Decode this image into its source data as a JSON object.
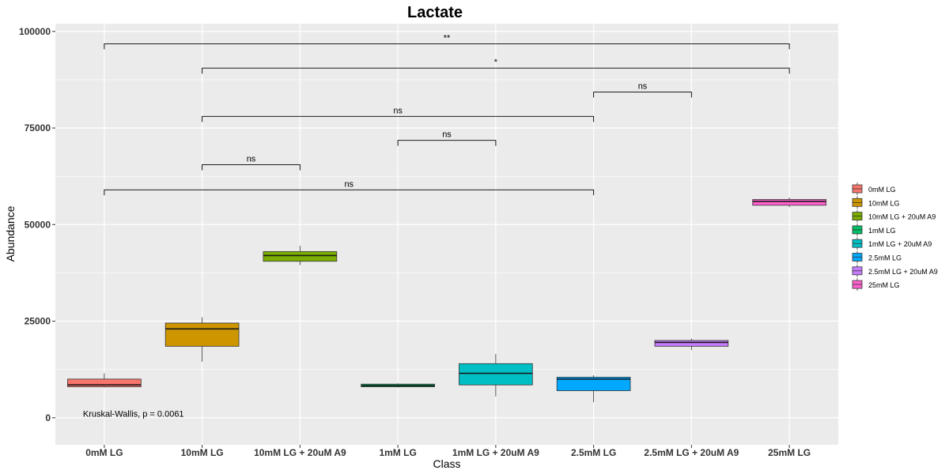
{
  "chart_data": {
    "type": "box",
    "title": "Lactate",
    "xlabel": "Class",
    "ylabel": "Abundance",
    "ylim": [
      -7000,
      102000
    ],
    "yticks": [
      0,
      25000,
      50000,
      75000,
      100000
    ],
    "ytick_labels": [
      "0",
      "25000",
      "50000",
      "75000",
      "100000"
    ],
    "categories": [
      "0mM LG",
      "10mM LG",
      "10mM LG + 20uM A9",
      "1mM LG",
      "1mM LG + 20uM A9",
      "2.5mM LG",
      "2.5mM LG + 20uM A9",
      "25mM LG"
    ],
    "boxes": [
      {
        "name": "0mM LG",
        "color": "#F8766D",
        "min": 7800,
        "q1": 8000,
        "median": 8500,
        "q3": 10000,
        "max": 11500
      },
      {
        "name": "10mM LG",
        "color": "#CD9600",
        "min": 14500,
        "q1": 18500,
        "median": 23000,
        "q3": 24500,
        "max": 26000
      },
      {
        "name": "10mM LG + 20uM A9",
        "color": "#7CAE00",
        "min": 39500,
        "q1": 40500,
        "median": 42000,
        "q3": 43000,
        "max": 44500
      },
      {
        "name": "1mM LG",
        "color": "#00BE67",
        "min": 7800,
        "q1": 8000,
        "median": 8300,
        "q3": 8700,
        "max": 8900
      },
      {
        "name": "1mM LG + 20uM A9",
        "color": "#00BFC4",
        "min": 5500,
        "q1": 8500,
        "median": 11500,
        "q3": 14000,
        "max": 16500
      },
      {
        "name": "2.5mM LG",
        "color": "#00A9FF",
        "min": 4000,
        "q1": 7000,
        "median": 10000,
        "q3": 10500,
        "max": 11000
      },
      {
        "name": "2.5mM LG + 20uM A9",
        "color": "#C77CFF",
        "min": 17500,
        "q1": 18500,
        "median": 19500,
        "q3": 20000,
        "max": 20500
      },
      {
        "name": "25mM LG",
        "color": "#FF61CC",
        "min": 54500,
        "q1": 55000,
        "median": 56000,
        "q3": 56500,
        "max": 57000
      }
    ],
    "comparisons": [
      {
        "from": 0,
        "to": 5,
        "y": 59000,
        "label": "ns"
      },
      {
        "from": 1,
        "to": 2,
        "y": 65500,
        "label": "ns"
      },
      {
        "from": 3,
        "to": 4,
        "y": 71800,
        "label": "ns"
      },
      {
        "from": 1,
        "to": 5,
        "y": 78000,
        "label": "ns"
      },
      {
        "from": 5,
        "to": 6,
        "y": 84300,
        "label": "ns"
      },
      {
        "from": 1,
        "to": 7,
        "y": 90500,
        "label": "*"
      },
      {
        "from": 0,
        "to": 7,
        "y": 96800,
        "label": "**"
      }
    ],
    "annotation": {
      "text": "Kruskal-Wallis, p = 0.0061",
      "x": 0,
      "y": 500
    },
    "legend": {
      "position": "right",
      "entries": [
        "0mM LG",
        "10mM LG",
        "10mM LG + 20uM A9",
        "1mM LG",
        "1mM LG + 20uM A9",
        "2.5mM LG",
        "2.5mM LG + 20uM A9",
        "25mM LG"
      ]
    },
    "grid": true
  }
}
